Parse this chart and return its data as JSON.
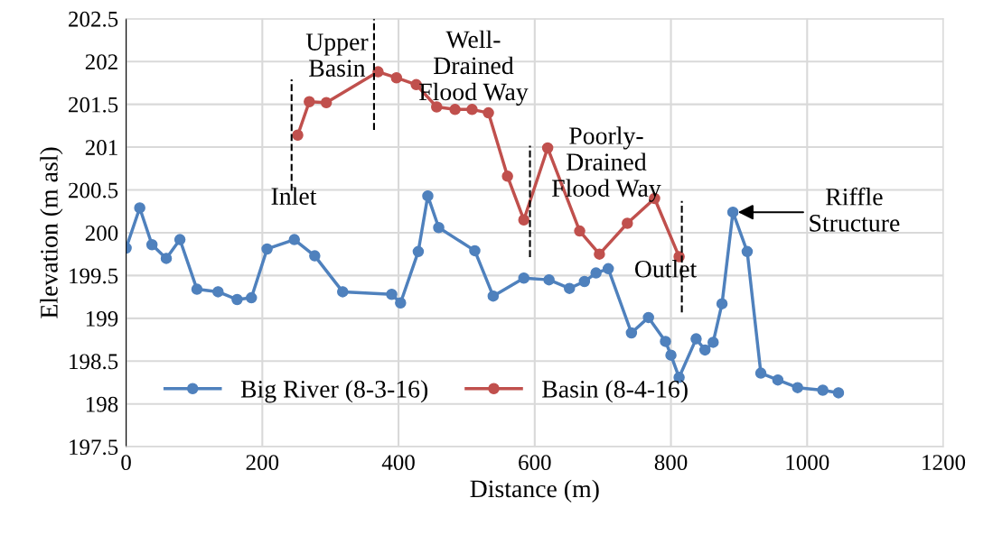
{
  "chart_data": {
    "type": "line",
    "xlabel": "Distance (m)",
    "ylabel": "Elevation (m asl)",
    "xlim": [
      0,
      1200
    ],
    "xticks": [
      0,
      200,
      400,
      600,
      800,
      1000,
      1200
    ],
    "ylim": [
      197.5,
      202.5
    ],
    "yticks": [
      197.5,
      198,
      198.5,
      199,
      199.5,
      200,
      200.5,
      201,
      201.5,
      202,
      202.5
    ],
    "grid": true,
    "legend": "bottom left",
    "marker": "circle",
    "line_style": "solid",
    "series": [
      {
        "name": "Big River (8-3-16)",
        "color": "#4f81bd",
        "x": [
          0,
          20,
          38,
          59,
          79,
          104,
          135,
          163,
          184,
          207,
          247,
          277,
          318,
          390,
          403,
          429,
          443,
          459,
          512,
          539,
          584,
          621,
          651,
          673,
          690,
          708,
          742,
          767,
          792,
          800,
          812,
          837,
          850,
          862,
          875,
          891,
          912,
          932,
          957,
          986,
          1023,
          1046
        ],
        "values": [
          199.82,
          200.29,
          199.86,
          199.7,
          199.92,
          199.34,
          199.31,
          199.22,
          199.24,
          199.81,
          199.92,
          199.73,
          199.31,
          199.28,
          199.18,
          199.78,
          200.43,
          200.06,
          199.79,
          199.26,
          199.47,
          199.45,
          199.35,
          199.43,
          199.53,
          199.58,
          198.83,
          199.01,
          198.73,
          198.57,
          198.31,
          198.76,
          198.63,
          198.72,
          199.17,
          200.24,
          199.78,
          198.36,
          198.28,
          198.19,
          198.16,
          198.13
        ]
      },
      {
        "name": "Basin (8-4-16)",
        "color": "#c0504d",
        "x": [
          252,
          269,
          294,
          370,
          397,
          426,
          456,
          483,
          508,
          532,
          560,
          584,
          619,
          666,
          695,
          736,
          776,
          812
        ],
        "values": [
          201.14,
          201.53,
          201.52,
          201.88,
          201.81,
          201.73,
          201.47,
          201.44,
          201.44,
          201.4,
          200.66,
          200.15,
          200.99,
          200.02,
          199.75,
          200.11,
          200.4,
          199.72
        ]
      }
    ],
    "ref_lines": [
      {
        "axis": "x",
        "value": 243,
        "color": "#000000",
        "line_style": "dashed"
      },
      {
        "axis": "x",
        "value": 364,
        "color": "#000000",
        "line_style": "dashed"
      },
      {
        "axis": "x",
        "value": 593,
        "color": "#000000",
        "line_style": "dashed"
      },
      {
        "axis": "x",
        "value": 816,
        "color": "#000000",
        "line_style": "dashed"
      }
    ],
    "annotations": [
      "Inlet",
      "Upper\nBasin",
      "Well-\nDrained\nFlood Way",
      "Poorly-\nDrained\nFlood Way",
      "Outlet",
      {
        "text": "Riffle\nStructure",
        "x": 891,
        "y": 200.24
      }
    ]
  }
}
